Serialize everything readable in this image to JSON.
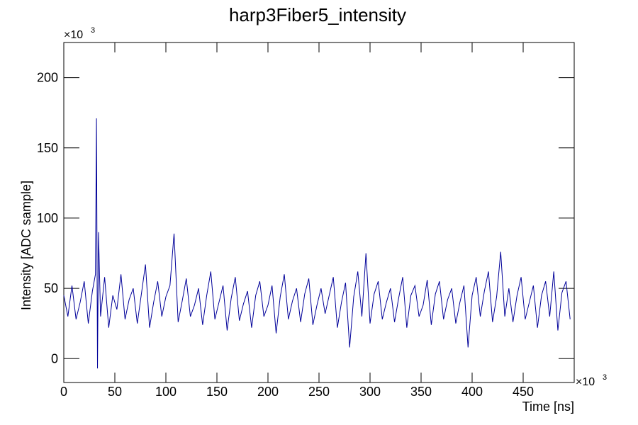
{
  "chart_data": {
    "type": "line",
    "title": "harp3Fiber5_intensity",
    "x_label": "Time [ns]",
    "y_label": "Intensity [ADC sample]",
    "x_scale": {
      "base": "×10",
      "exponent": "3"
    },
    "y_scale": {
      "base": "×10",
      "exponent": "3"
    },
    "xlim": [
      0,
      500
    ],
    "ylim": [
      -17,
      225
    ],
    "xticks": [
      0,
      50,
      100,
      150,
      200,
      250,
      300,
      350,
      400,
      450
    ],
    "yticks": [
      0,
      50,
      100,
      150,
      200
    ],
    "series": [
      {
        "color": "#000099",
        "x": [
          0,
          4,
          8,
          12,
          16,
          20,
          24,
          28,
          31,
          32,
          33,
          34,
          36,
          40,
          44,
          48,
          52,
          56,
          60,
          64,
          68,
          72,
          76,
          80,
          84,
          88,
          92,
          96,
          100,
          104,
          108,
          112,
          116,
          120,
          124,
          128,
          132,
          136,
          140,
          144,
          148,
          152,
          156,
          160,
          164,
          168,
          172,
          176,
          180,
          184,
          188,
          192,
          196,
          200,
          204,
          208,
          212,
          216,
          220,
          224,
          228,
          232,
          236,
          240,
          244,
          248,
          252,
          256,
          260,
          264,
          268,
          272,
          276,
          280,
          284,
          288,
          292,
          296,
          300,
          304,
          308,
          312,
          316,
          320,
          324,
          328,
          332,
          336,
          340,
          344,
          348,
          352,
          356,
          360,
          364,
          368,
          372,
          376,
          380,
          384,
          388,
          392,
          396,
          400,
          404,
          408,
          412,
          416,
          420,
          424,
          428,
          432,
          436,
          440,
          444,
          448,
          452,
          456,
          460,
          464,
          468,
          472,
          476,
          480,
          484,
          488,
          492,
          496
        ],
        "values": [
          45,
          30,
          52,
          28,
          40,
          55,
          25,
          48,
          60,
          171,
          -7,
          90,
          30,
          58,
          22,
          45,
          35,
          60,
          28,
          42,
          50,
          25,
          46,
          67,
          22,
          40,
          55,
          30,
          44,
          52,
          89,
          26,
          41,
          57,
          30,
          38,
          50,
          24,
          45,
          62,
          28,
          40,
          52,
          20,
          43,
          58,
          27,
          39,
          48,
          22,
          45,
          55,
          30,
          38,
          52,
          18,
          44,
          60,
          28,
          41,
          50,
          26,
          46,
          57,
          24,
          38,
          50,
          32,
          45,
          58,
          22,
          40,
          54,
          8,
          44,
          62,
          30,
          75,
          25,
          46,
          55,
          28,
          40,
          50,
          26,
          43,
          58,
          22,
          45,
          52,
          30,
          38,
          56,
          24,
          46,
          55,
          28,
          42,
          50,
          25,
          40,
          52,
          8,
          45,
          58,
          30,
          48,
          62,
          26,
          44,
          76,
          30,
          50,
          26,
          45,
          58,
          28,
          40,
          52,
          22,
          45,
          55,
          30,
          62,
          20,
          47,
          55,
          28
        ]
      }
    ]
  }
}
